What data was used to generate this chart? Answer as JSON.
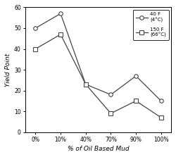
{
  "x_labels": [
    "0%",
    "10%",
    "40%",
    "70%",
    "90%",
    "100%"
  ],
  "x_positions": [
    0,
    1,
    2,
    3,
    4,
    5
  ],
  "series": [
    {
      "label": "40 F\n(4°C)",
      "values": [
        50,
        57,
        23,
        18,
        27,
        15
      ],
      "marker": "o",
      "color": "#444444",
      "markersize": 4,
      "markerfacecolor": "white"
    },
    {
      "label": "150 F\n(66°C)",
      "values": [
        40,
        47,
        23,
        9,
        15,
        7
      ],
      "marker": "s",
      "color": "#444444",
      "markersize": 4,
      "markerfacecolor": "white"
    }
  ],
  "xlabel": "% of Oil Based Mud",
  "ylabel": "Yield Point",
  "ylim": [
    0,
    60
  ],
  "yticks": [
    0,
    10,
    20,
    30,
    40,
    50,
    60
  ],
  "background_color": "#ffffff",
  "plot_bg_color": "#ffffff"
}
